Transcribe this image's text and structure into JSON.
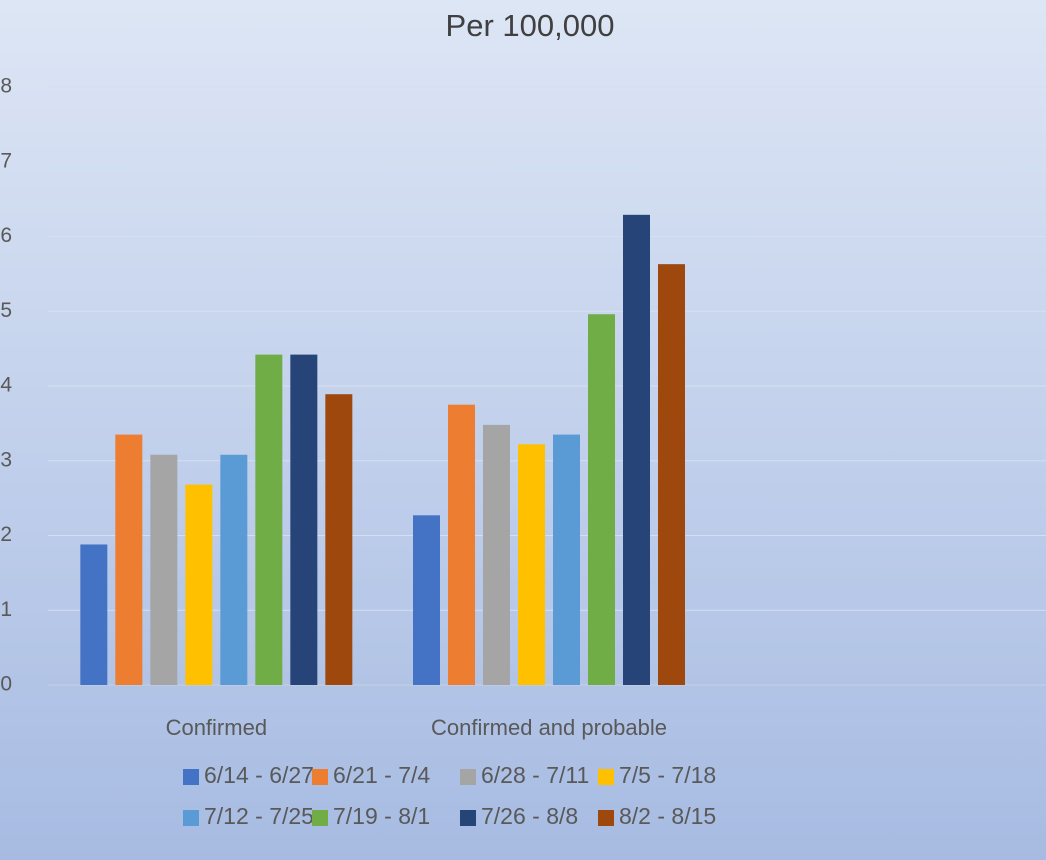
{
  "chart_data": {
    "type": "bar",
    "title": "Per 100,000",
    "categories": [
      "Confirmed",
      "Confirmed and probable",
      null
    ],
    "series": [
      {
        "name": "6/14 - 6/27",
        "color": "#4472c4",
        "values": [
          1.88,
          2.27,
          null
        ]
      },
      {
        "name": "6/21 - 7/4",
        "color": "#ed7d31",
        "values": [
          3.35,
          3.75,
          null
        ]
      },
      {
        "name": "6/28 - 7/11",
        "color": "#a5a5a5",
        "values": [
          3.08,
          3.48,
          null
        ]
      },
      {
        "name": "7/5 - 7/18",
        "color": "#ffc000",
        "values": [
          2.68,
          3.22,
          null
        ]
      },
      {
        "name": "7/12 - 7/25",
        "color": "#5b9bd5",
        "values": [
          3.08,
          3.35,
          null
        ]
      },
      {
        "name": "7/19 - 8/1",
        "color": "#70ad47",
        "values": [
          4.42,
          4.96,
          null
        ]
      },
      {
        "name": "7/26 - 8/8",
        "color": "#264478",
        "values": [
          4.42,
          6.29,
          null
        ]
      },
      {
        "name": "8/2 - 8/15",
        "color": "#9e480e",
        "values": [
          3.89,
          5.63,
          null
        ]
      }
    ],
    "ylim": [
      0,
      8
    ],
    "yticks": [
      0,
      1,
      2,
      3,
      4,
      5,
      6,
      7,
      8
    ],
    "grid": true,
    "legend": "bottom"
  }
}
